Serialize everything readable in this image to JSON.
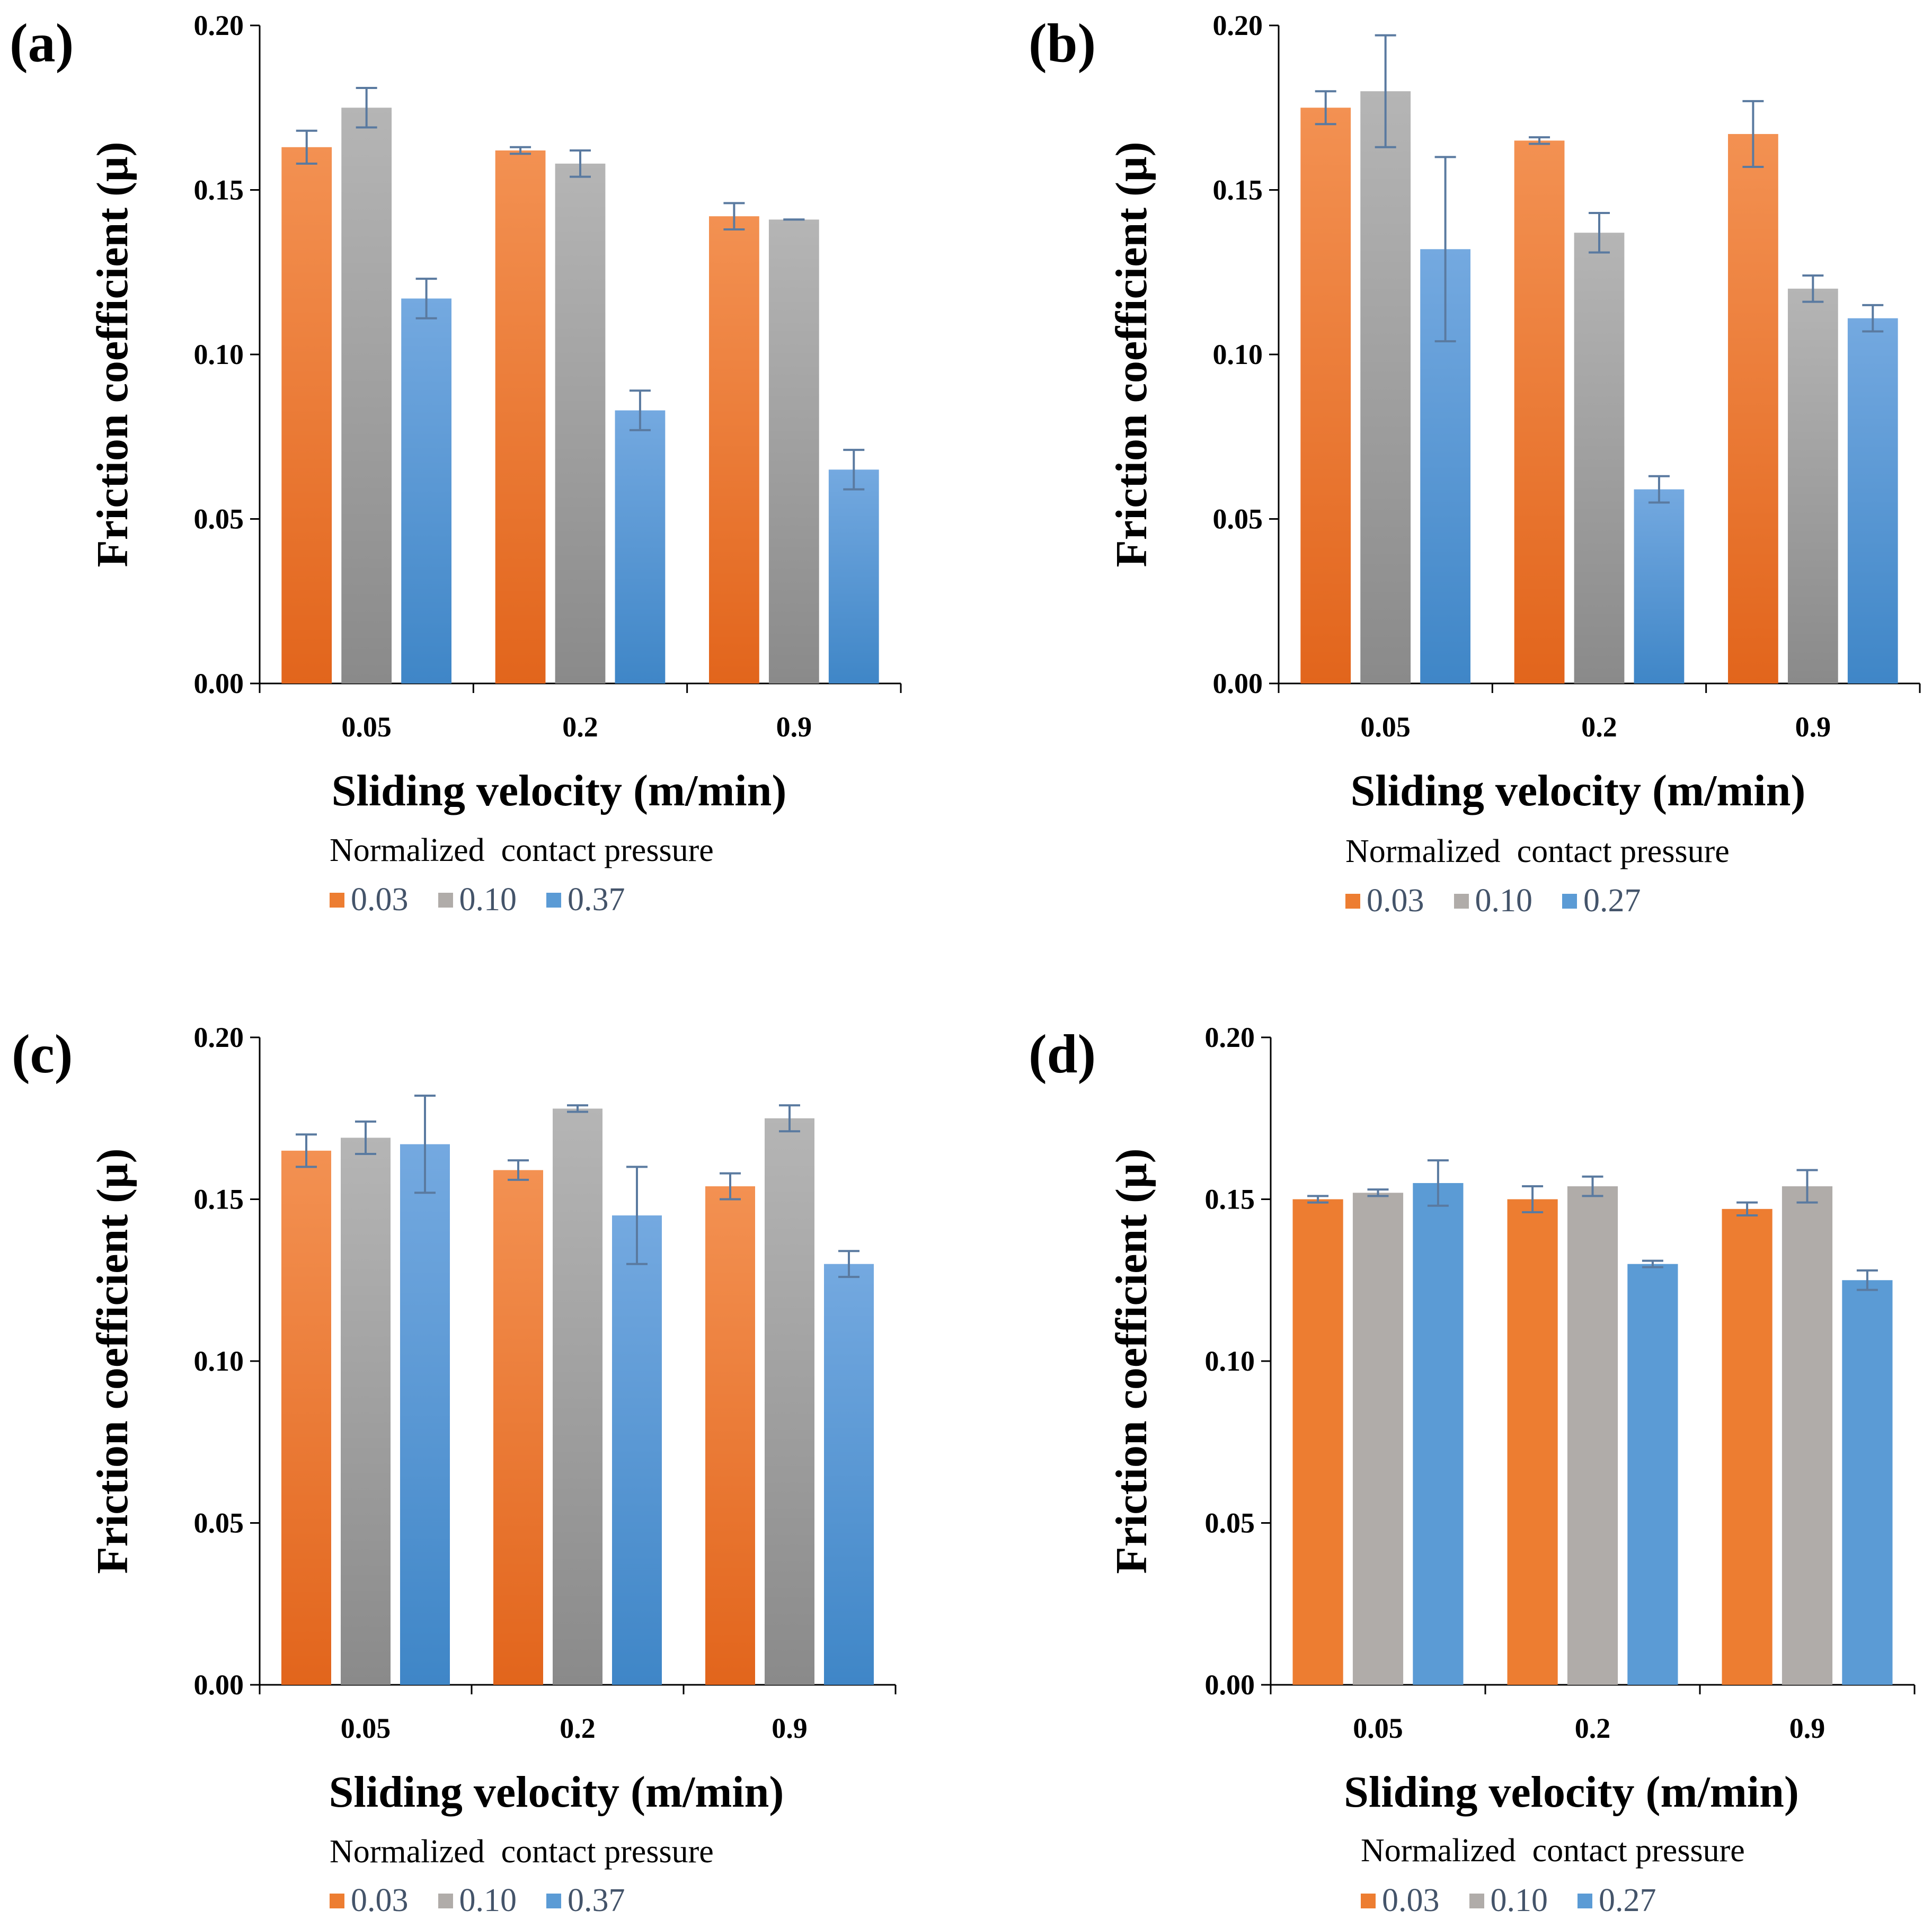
{
  "legend_title": "Normalized  contact pressure",
  "colors": {
    "orange_top": "#f39152",
    "orange_bottom": "#e2651c",
    "gray_top": "#b5b5b5",
    "gray_bottom": "#8a8a8a",
    "blue_top": "#74a9e0",
    "blue_bottom": "#3f86c7",
    "flat_orange": "#ed7d31",
    "flat_gray": "#b0aca9",
    "flat_blue": "#5b9bd5",
    "errorbar": "#5a7aa0"
  },
  "chart_data": [
    {
      "panel": "(a)",
      "type": "bar",
      "xlabel": "Sliding velocity (m/min)",
      "ylabel": "Friction coefficient (μ)",
      "ylim": [
        0,
        0.2
      ],
      "yticks": [
        "0.00",
        "0.05",
        "0.10",
        "0.15",
        "0.20"
      ],
      "categories": [
        "0.05",
        "0.2",
        "0.9"
      ],
      "series": [
        {
          "name": "0.03",
          "values": [
            0.163,
            0.162,
            0.142
          ],
          "errors": [
            0.005,
            0.001,
            0.004
          ]
        },
        {
          "name": "0.10",
          "values": [
            0.175,
            0.158,
            0.141
          ],
          "errors": [
            0.006,
            0.004,
            0.0
          ]
        },
        {
          "name": "0.37",
          "values": [
            0.117,
            0.083,
            0.065
          ],
          "errors": [
            0.006,
            0.006,
            0.006
          ]
        }
      ]
    },
    {
      "panel": "(b)",
      "type": "bar",
      "xlabel": "Sliding velocity (m/min)",
      "ylabel": "Friction coefficient (μ)",
      "ylim": [
        0,
        0.2
      ],
      "yticks": [
        "0.00",
        "0.05",
        "0.10",
        "0.15",
        "0.20"
      ],
      "categories": [
        "0.05",
        "0.2",
        "0.9"
      ],
      "series": [
        {
          "name": "0.03",
          "values": [
            0.175,
            0.165,
            0.167
          ],
          "errors": [
            0.005,
            0.001,
            0.01
          ]
        },
        {
          "name": "0.10",
          "values": [
            0.18,
            0.137,
            0.12
          ],
          "errors": [
            0.017,
            0.006,
            0.004
          ]
        },
        {
          "name": "0.27",
          "values": [
            0.132,
            0.059,
            0.111
          ],
          "errors": [
            0.028,
            0.004,
            0.004
          ]
        }
      ]
    },
    {
      "panel": "(c)",
      "type": "bar",
      "xlabel": "Sliding velocity (m/min)",
      "ylabel": "Friction coefficient (μ)",
      "ylim": [
        0,
        0.2
      ],
      "yticks": [
        "0.00",
        "0.05",
        "0.10",
        "0.15",
        "0.20"
      ],
      "categories": [
        "0.05",
        "0.2",
        "0.9"
      ],
      "series": [
        {
          "name": "0.03",
          "values": [
            0.165,
            0.159,
            0.154
          ],
          "errors": [
            0.005,
            0.003,
            0.004
          ]
        },
        {
          "name": "0.10",
          "values": [
            0.169,
            0.178,
            0.175
          ],
          "errors": [
            0.005,
            0.001,
            0.004
          ]
        },
        {
          "name": "0.37",
          "values": [
            0.167,
            0.145,
            0.13
          ],
          "errors": [
            0.015,
            0.015,
            0.004
          ]
        }
      ]
    },
    {
      "panel": "(d)",
      "type": "bar",
      "xlabel": "Sliding velocity (m/min)",
      "ylabel": "Friction coefficient (μ)",
      "ylim": [
        0,
        0.2
      ],
      "yticks": [
        "0.00",
        "0.05",
        "0.10",
        "0.15",
        "0.20"
      ],
      "categories": [
        "0.05",
        "0.2",
        "0.9"
      ],
      "series": [
        {
          "name": "0.03",
          "values": [
            0.15,
            0.15,
            0.147
          ],
          "errors": [
            0.001,
            0.004,
            0.002
          ]
        },
        {
          "name": "0.10",
          "values": [
            0.152,
            0.154,
            0.154
          ],
          "errors": [
            0.001,
            0.003,
            0.005
          ]
        },
        {
          "name": "0.27",
          "values": [
            0.155,
            0.13,
            0.125
          ],
          "errors": [
            0.007,
            0.001,
            0.003
          ]
        }
      ]
    }
  ]
}
